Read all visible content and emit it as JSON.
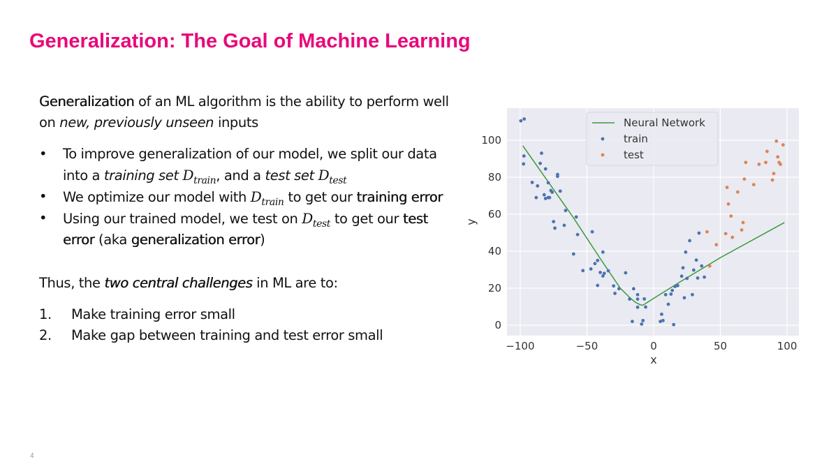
{
  "slide": {
    "title": "Generalization: The Goal of Machine Learning",
    "page_number": "4",
    "accent_color": "#e8097a"
  },
  "intro": {
    "bold_term": "Generalization",
    "text_1": " of an ML algorithm is the ability to perform well on ",
    "italic": "new, previously unseen",
    "text_2": " inputs"
  },
  "bullets": [
    {
      "a": "To improve generalization of our model, we split our data into a ",
      "italic_1": "training set ",
      "math_1": "D",
      "sub_1": "train",
      "b": ", and a ",
      "italic_2": "test set ",
      "math_2": "D",
      "sub_2": "test"
    },
    {
      "a": "We optimize our model with ",
      "math": "D",
      "sub": "train",
      "b": " to get our ",
      "bold": "training error"
    },
    {
      "a": "Using our trained model, we test on ",
      "math": "D",
      "sub": "test",
      "b": " to get our ",
      "bold_1": "test error",
      "c": " (aka ",
      "bold_2": "generalization error",
      "d": ")"
    }
  ],
  "thus": {
    "a": "Thus, the ",
    "italic_bold": "two central challenges",
    "b": " in ML are to:"
  },
  "challenges": [
    {
      "num": "1.",
      "text": "Make training error small"
    },
    {
      "num": "2.",
      "text": "Make gap between training and test error small"
    }
  ],
  "chart_data": {
    "type": "scatter",
    "title": "",
    "xlabel": "x",
    "ylabel": "y",
    "xlim": [
      -110,
      110
    ],
    "ylim": [
      -6,
      117
    ],
    "xticks": [
      -100,
      -50,
      0,
      50,
      100
    ],
    "xtick_labels": [
      "−100",
      "−50",
      "0",
      "50",
      "100"
    ],
    "yticks": [
      0,
      20,
      40,
      60,
      80,
      100
    ],
    "ytick_labels": [
      "0",
      "20",
      "40",
      "60",
      "80",
      "100"
    ],
    "grid": true,
    "background": "#eaeaf2",
    "legend_position": "upper center",
    "legend": [
      {
        "label": "Neural Network",
        "kind": "line",
        "color": "#3a9a3a"
      },
      {
        "label": "train",
        "kind": "dot",
        "color": "#4c72b0"
      },
      {
        "label": "test",
        "kind": "dot",
        "color": "#dd8452"
      }
    ],
    "series": [
      {
        "name": "Neural Network",
        "kind": "line",
        "color": "#3a9a3a",
        "x": [
          -98,
          -60,
          -40,
          -25,
          -18,
          -14,
          -10,
          -8,
          0,
          20,
          50,
          98
        ],
        "y": [
          97,
          58,
          36,
          20,
          15,
          12.5,
          11,
          10.8,
          14.5,
          23.5,
          36.5,
          55.5
        ]
      },
      {
        "name": "train",
        "kind": "scatter",
        "color": "#4c72b0",
        "x": [
          -99.5,
          -97,
          -97.2,
          -97.5,
          -91,
          -88,
          -87,
          -85,
          -84,
          -82,
          -81,
          -81,
          -79,
          -79,
          -78,
          -77,
          -76,
          -75,
          -74,
          -72,
          -72,
          -70,
          -67,
          -66,
          -60,
          -58,
          -57,
          -53,
          -47,
          -46,
          -44,
          -42,
          -42,
          -40,
          -38,
          -38,
          -37,
          -34,
          -30,
          -29,
          -26,
          -21,
          -18,
          -16,
          -15,
          -12,
          -12,
          -12,
          -9,
          -8,
          -7,
          -6,
          5,
          6,
          7,
          9,
          11,
          13,
          14,
          15,
          16,
          18,
          21,
          22,
          23,
          24,
          25,
          27,
          29,
          30,
          32,
          33,
          34,
          36,
          38
        ],
        "y": [
          110.5,
          111.5,
          91.5,
          87.2,
          77.2,
          69,
          75.3,
          87.5,
          93,
          70.5,
          68.5,
          84.5,
          77,
          69,
          69,
          72.8,
          71.9,
          56,
          52.5,
          81.5,
          80.5,
          72.5,
          54,
          62,
          38.5,
          58.5,
          49,
          29.5,
          30.4,
          50.5,
          33.3,
          21.5,
          35,
          28.5,
          26.6,
          39.5,
          28,
          29.4,
          21.2,
          17.2,
          19.7,
          28.3,
          14.1,
          2,
          19.7,
          16.5,
          14.1,
          9.7,
          0.6,
          2.5,
          14.2,
          9.8,
          2,
          5.9,
          2.5,
          16.5,
          11.3,
          16.8,
          18.8,
          0.3,
          20.9,
          21.4,
          26.5,
          31,
          14.8,
          39.5,
          25.3,
          45.7,
          16.5,
          29.8,
          35.2,
          25.5,
          49.8,
          32,
          26
        ],
        "note": "approximate values read from plot"
      },
      {
        "name": "test",
        "kind": "scatter",
        "color": "#dd8452",
        "x": [
          40,
          42,
          47,
          54,
          55,
          56,
          58,
          59,
          63,
          66,
          67,
          68,
          69,
          75,
          79,
          84,
          85,
          89,
          90,
          92,
          93,
          94,
          95,
          97
        ],
        "y": [
          50.5,
          32,
          43.5,
          49.5,
          74.5,
          65.5,
          59,
          47.5,
          72,
          51.5,
          55.5,
          79,
          88,
          76,
          87,
          88,
          94,
          78.5,
          82,
          99.5,
          91,
          88,
          87,
          97.5
        ],
        "note": "approximate values read from plot"
      }
    ]
  }
}
